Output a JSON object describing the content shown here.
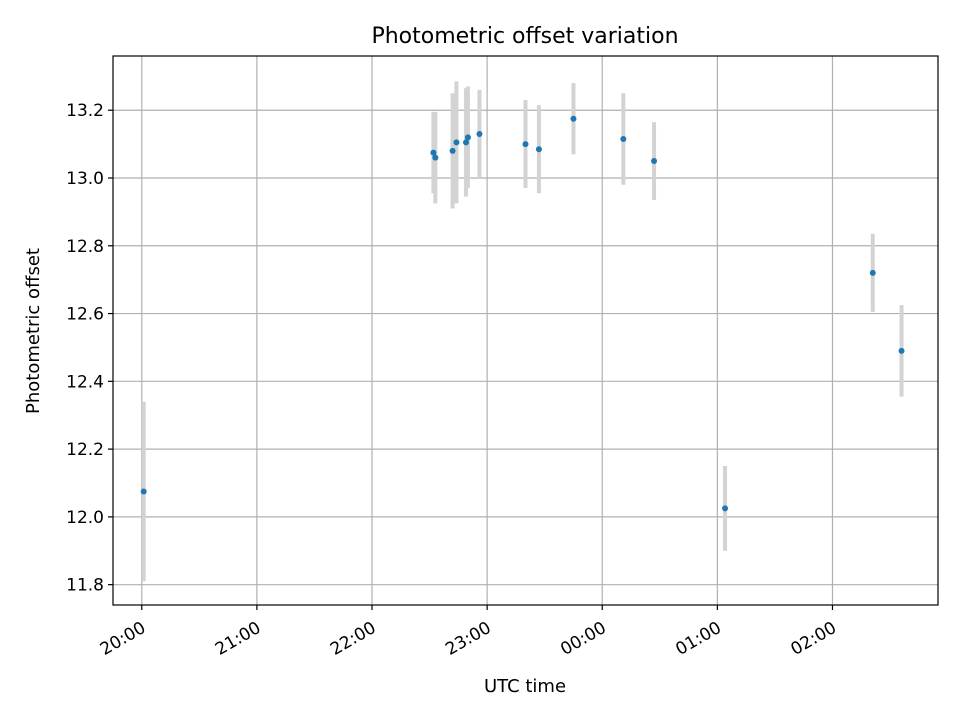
{
  "chart_data": {
    "type": "scatter",
    "title": "Photometric offset variation",
    "xlabel": "UTC time",
    "ylabel": "Photometric offset",
    "xlim": [
      "19:45",
      "02:55"
    ],
    "ylim": [
      11.74,
      13.36
    ],
    "x_ticks": [
      "20:00",
      "21:00",
      "22:00",
      "23:00",
      "00:00",
      "01:00",
      "02:00"
    ],
    "y_ticks": [
      "11.8",
      "12.0",
      "12.2",
      "12.4",
      "12.6",
      "12.8",
      "13.0",
      "13.2"
    ],
    "grid": true,
    "colors": {
      "marker": "#1f77b4",
      "errorbar": "#d3d3d3",
      "grid": "#b0b0b0"
    },
    "series": [
      {
        "points": [
          {
            "x": "20:01",
            "y": 12.075,
            "yerr": 0.265
          },
          {
            "x": "22:32",
            "y": 13.075,
            "yerr": 0.12
          },
          {
            "x": "22:33",
            "y": 13.06,
            "yerr": 0.135
          },
          {
            "x": "22:42",
            "y": 13.08,
            "yerr": 0.17
          },
          {
            "x": "22:44",
            "y": 13.105,
            "yerr": 0.18
          },
          {
            "x": "22:49",
            "y": 13.105,
            "yerr": 0.16
          },
          {
            "x": "22:50",
            "y": 13.12,
            "yerr": 0.15
          },
          {
            "x": "22:56",
            "y": 13.13,
            "yerr": 0.13
          },
          {
            "x": "23:20",
            "y": 13.1,
            "yerr": 0.13
          },
          {
            "x": "23:27",
            "y": 13.085,
            "yerr": 0.13
          },
          {
            "x": "23:45",
            "y": 13.175,
            "yerr": 0.105
          },
          {
            "x": "00:11",
            "y": 13.115,
            "yerr": 0.135
          },
          {
            "x": "00:27",
            "y": 13.05,
            "yerr": 0.115
          },
          {
            "x": "01:04",
            "y": 12.025,
            "yerr": 0.125
          },
          {
            "x": "02:21",
            "y": 12.72,
            "yerr": 0.115
          },
          {
            "x": "02:36",
            "y": 12.49,
            "yerr": 0.135
          }
        ]
      }
    ]
  }
}
